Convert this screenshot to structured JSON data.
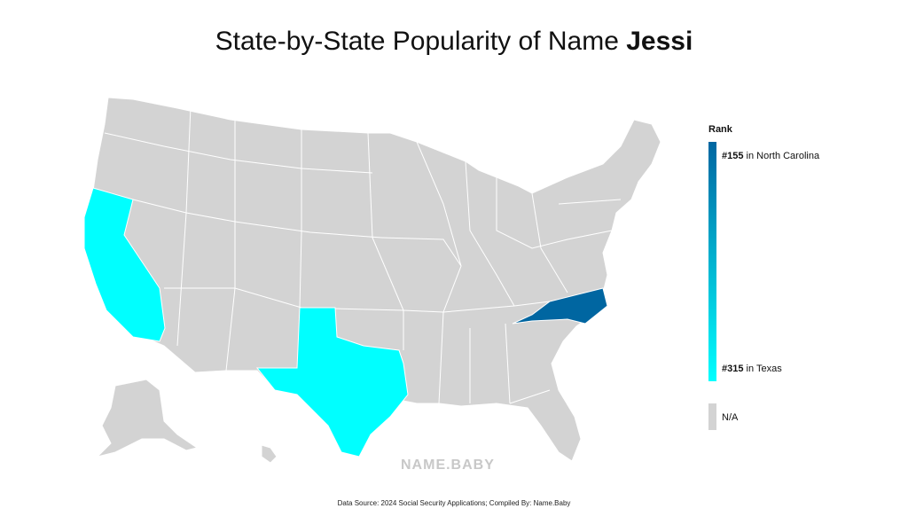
{
  "header": {
    "title": "State-by-State Popularity of Name ",
    "name": "Jessi"
  },
  "legend": {
    "title": "Rank",
    "top": {
      "rank": "#155",
      "state": " in North Carolina",
      "color": "#0066a1"
    },
    "bottom": {
      "rank": "#315",
      "state": " in Texas",
      "color": "#00ffff"
    },
    "na": {
      "label": "N/A",
      "color": "#d3d3d3"
    }
  },
  "watermark": "NAME.BABY",
  "source": "Data Source: 2024 Social Security Applications; Compiled By: Name.Baby"
}
